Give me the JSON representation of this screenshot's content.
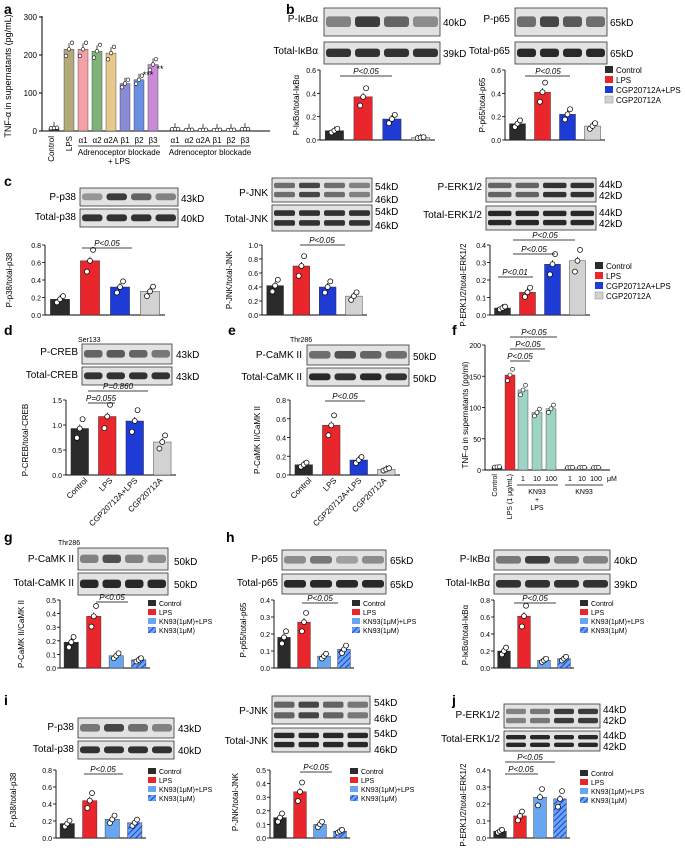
{
  "colors": {
    "black": "#2b2b2b",
    "red": "#e8262b",
    "blue": "#1f3bd6",
    "lightblue": "#69a6f1",
    "gray": "#d2d2d2",
    "olive": "#b2aa7a"
  },
  "panel_a": {
    "letter": "a",
    "ylabel": "TNF-α in supernatants (pg/mL)",
    "yticks": [
      "0",
      "100",
      "200",
      "300"
    ],
    "categories": [
      "Control",
      "LPS",
      "α1",
      "α2",
      "α2A",
      "β1",
      "β2",
      "β3",
      "α1",
      "α2",
      "α2A",
      "β1",
      "β2",
      "β3"
    ],
    "group_label_1": "Adrenoceptor blockade",
    "group_label_1b": "+ LPS",
    "group_label_2": "Adrenoceptor blockade",
    "stars": [
      "***",
      "**"
    ]
  },
  "legend_cgp": {
    "items": [
      "Control",
      "LPS",
      "CGP20712A+LPS",
      "CGP20712A"
    ]
  },
  "legend_kn": {
    "items": [
      "Control",
      "LPS",
      "KN93(1μM)+LPS",
      "KN93(1μM)"
    ]
  },
  "panel_b": {
    "letter": "b",
    "blot1": {
      "top": "P-IκBα",
      "bottom": "Total-IκBα",
      "kd_top": "40kD",
      "kd_bottom": "39kD",
      "ylabel": "P-IκBα/total-IκBα",
      "p": "P<0.05"
    },
    "blot2": {
      "top": "P-p65",
      "bottom": "Total-p65",
      "kd_top": "65kD",
      "kd_bottom": "65kD",
      "ylabel": "P-p65/total-p65",
      "p": "P<0.05"
    }
  },
  "panel_c": {
    "letter": "c",
    "p38": {
      "top": "P-p38",
      "bottom": "Total-p38",
      "kd_top": "43kD",
      "kd_bottom": "40kD",
      "ylabel": "P-p38/total-p38",
      "p": "P<0.05"
    },
    "jnk": {
      "top": "P-JNK",
      "bottom": "Total-JNK",
      "kd1": "54kD",
      "kd2": "46kD",
      "kd3": "54kD",
      "kd4": "46kD",
      "ylabel": "P-JNK/total-JNK",
      "p": "P<0.05"
    },
    "erk": {
      "top": "P-ERK1/2",
      "bottom": "Total-ERK1/2",
      "kd1": "44kD",
      "kd2": "42kD",
      "kd3": "44kD",
      "kd4": "42kD",
      "ylabel": "P-ERK1/2/total-ERK1/2",
      "p1": "P<0.05",
      "p2": "P<0.05",
      "p3": "P<0.01"
    }
  },
  "panel_d": {
    "letter": "d",
    "top": "P-CREB",
    "sup": "Ser133",
    "bottom": "Total-CREB",
    "kd_top": "43kD",
    "kd_bottom": "43kD",
    "ylabel": "P-CREB/total-CREB",
    "p1": "P=0.860",
    "p2": "P=0.055",
    "xlabels": [
      "Control",
      "LPS",
      "CGP20712A+LPS",
      "CGP20712A"
    ]
  },
  "panel_e": {
    "letter": "e",
    "top": "P-CaMK II",
    "sup": "Thr286",
    "bottom": "Total-CaMK II",
    "kd_top": "50kD",
    "kd_bottom": "50kD",
    "ylabel": "P-CaMK II/CaMK II",
    "p": "P<0.05",
    "xlabels": [
      "Control",
      "LPS",
      "CGP20712A+LPS",
      "CGP20712A"
    ]
  },
  "panel_f": {
    "letter": "f",
    "ylabel": "TNF-α in supernatants (pg/ml)",
    "p_labels": [
      "P<0.05",
      "P<0.05",
      "P<0.05"
    ],
    "xlabels": [
      "Control",
      "LPS (1 μg/mL)"
    ],
    "doses": [
      "1",
      "10",
      "100",
      "1",
      "10",
      "100"
    ],
    "unit": "μM",
    "kn_label": "KN93",
    "kn_plus": "+",
    "kn_lps": "LPS",
    "kn_label2": "KN93"
  },
  "panel_g": {
    "letter": "g",
    "top": "P-CaMK II",
    "sup": "Thr286",
    "bottom": "Total-CaMK II",
    "kd_top": "50kD",
    "kd_bottom": "50kD",
    "ylabel": "P-CaMK II/CaMK II",
    "p": "P<0.05"
  },
  "panel_h": {
    "letter": "h",
    "p65": {
      "top": "P-p65",
      "bottom": "Total-p65",
      "kd_top": "65kD",
      "kd_bottom": "65kD",
      "ylabel": "P-p65/total-p65",
      "p": "P<0.05"
    },
    "ikb": {
      "top": "P-IκBα",
      "bottom": "Total-IκBα",
      "kd_top": "40kD",
      "kd_bottom": "39kD",
      "ylabel": "P-IκBα/total-IκBα",
      "p": "P<0.05"
    }
  },
  "panel_i": {
    "letter": "i",
    "p38": {
      "top": "P-p38",
      "bottom": "Total-p38",
      "kd_top": "43kD",
      "kd_bottom": "40kD",
      "ylabel": "P-p38/total-p38",
      "p": "P<0.05"
    },
    "jnk": {
      "top": "P-JNK",
      "bottom": "Total-JNK",
      "kd1": "54kD",
      "kd2": "46kD",
      "kd3": "54kD",
      "kd4": "46kD",
      "ylabel": "P-JNK/total-JNK",
      "p": "P<0.05"
    }
  },
  "panel_j": {
    "letter": "j",
    "top": "P-ERK1/2",
    "bottom": "Total-ERK1/2",
    "kd1": "44kD",
    "kd2": "42kD",
    "kd3": "44kD",
    "kd4": "42kD",
    "ylabel": "P-ERK1/2/total-ERK1/2",
    "p1": "P<0.05",
    "p2": "P<0.05"
  },
  "chart_data": [
    {
      "type": "bar",
      "panel": "a",
      "categories": [
        "Control",
        "LPS",
        "α1",
        "α2",
        "α2A",
        "β1",
        "β2",
        "β3",
        "α1",
        "α2",
        "α2A",
        "β1",
        "β2",
        "β3"
      ],
      "values": [
        8,
        215,
        215,
        210,
        205,
        125,
        135,
        175,
        5,
        3,
        3,
        3,
        3,
        5
      ],
      "ylim": [
        0,
        300
      ]
    },
    {
      "type": "bar",
      "panel": "b1",
      "categories": [
        "Control",
        "LPS",
        "CGP20712A+LPS",
        "CGP20712A"
      ],
      "values": [
        0.08,
        0.37,
        0.18,
        0.02
      ],
      "ylim": [
        0,
        0.6
      ]
    },
    {
      "type": "bar",
      "panel": "b2",
      "categories": [
        "Control",
        "LPS",
        "CGP20712A+LPS",
        "CGP20712A"
      ],
      "values": [
        0.14,
        0.41,
        0.22,
        0.12
      ],
      "ylim": [
        0,
        0.6
      ]
    },
    {
      "type": "bar",
      "panel": "c-p38",
      "categories": [
        "Control",
        "LPS",
        "CGP20712A+LPS",
        "CGP20712A"
      ],
      "values": [
        0.18,
        0.62,
        0.32,
        0.27
      ],
      "ylim": [
        0,
        0.8
      ]
    },
    {
      "type": "bar",
      "panel": "c-jnk",
      "categories": [
        "Control",
        "LPS",
        "CGP20712A+LPS",
        "CGP20712A"
      ],
      "values": [
        0.42,
        0.7,
        0.4,
        0.27
      ],
      "ylim": [
        0,
        1.0
      ]
    },
    {
      "type": "bar",
      "panel": "c-erk",
      "categories": [
        "Control",
        "LPS",
        "CGP20712A+LPS",
        "CGP20712A"
      ],
      "values": [
        0.04,
        0.13,
        0.29,
        0.31
      ],
      "ylim": [
        0,
        0.4
      ]
    },
    {
      "type": "bar",
      "panel": "d",
      "categories": [
        "Control",
        "LPS",
        "CGP20712A+LPS",
        "CGP20712A"
      ],
      "values": [
        0.93,
        1.17,
        1.08,
        0.66
      ],
      "ylim": [
        0,
        1.5
      ]
    },
    {
      "type": "bar",
      "panel": "e",
      "categories": [
        "Control",
        "LPS",
        "CGP20712A+LPS",
        "CGP20712A"
      ],
      "values": [
        0.11,
        0.53,
        0.16,
        0.06
      ],
      "ylim": [
        0,
        0.8
      ]
    },
    {
      "type": "bar",
      "panel": "f",
      "categories": [
        "Control",
        "LPS",
        "KN93 1+LPS",
        "KN93 10+LPS",
        "KN93 100+LPS",
        "KN93 1",
        "KN93 10",
        "KN93 100"
      ],
      "values": [
        5,
        152,
        128,
        92,
        98,
        4,
        4,
        4
      ],
      "ylim": [
        0,
        200
      ]
    },
    {
      "type": "bar",
      "panel": "g",
      "categories": [
        "Control",
        "LPS",
        "KN93(1μM)+LPS",
        "KN93(1μM)"
      ],
      "values": [
        0.19,
        0.38,
        0.09,
        0.06
      ],
      "ylim": [
        0,
        0.5
      ]
    },
    {
      "type": "bar",
      "panel": "h-p65",
      "categories": [
        "Control",
        "LPS",
        "KN93(1μM)+LPS",
        "KN93(1μM)"
      ],
      "values": [
        0.18,
        0.27,
        0.07,
        0.11
      ],
      "ylim": [
        0,
        0.4
      ]
    },
    {
      "type": "bar",
      "panel": "h-ikb",
      "categories": [
        "Control",
        "LPS",
        "KN93(1μM)+LPS",
        "KN93(1μM)"
      ],
      "values": [
        0.2,
        0.61,
        0.09,
        0.11
      ],
      "ylim": [
        0,
        0.8
      ]
    },
    {
      "type": "bar",
      "panel": "i-p38",
      "categories": [
        "Control",
        "LPS",
        "KN93(1μM)+LPS",
        "KN93(1μM)"
      ],
      "values": [
        0.17,
        0.44,
        0.22,
        0.18
      ],
      "ylim": [
        0,
        0.8
      ]
    },
    {
      "type": "bar",
      "panel": "i-jnk",
      "categories": [
        "Control",
        "LPS",
        "KN93(1μM)+LPS",
        "KN93(1μM)"
      ],
      "values": [
        0.15,
        0.34,
        0.1,
        0.05
      ],
      "ylim": [
        0,
        0.5
      ]
    },
    {
      "type": "bar",
      "panel": "j",
      "categories": [
        "Control",
        "LPS",
        "KN93(1μM)+LPS",
        "KN93(1μM)"
      ],
      "values": [
        0.04,
        0.13,
        0.24,
        0.23
      ],
      "ylim": [
        0,
        0.4
      ]
    }
  ]
}
